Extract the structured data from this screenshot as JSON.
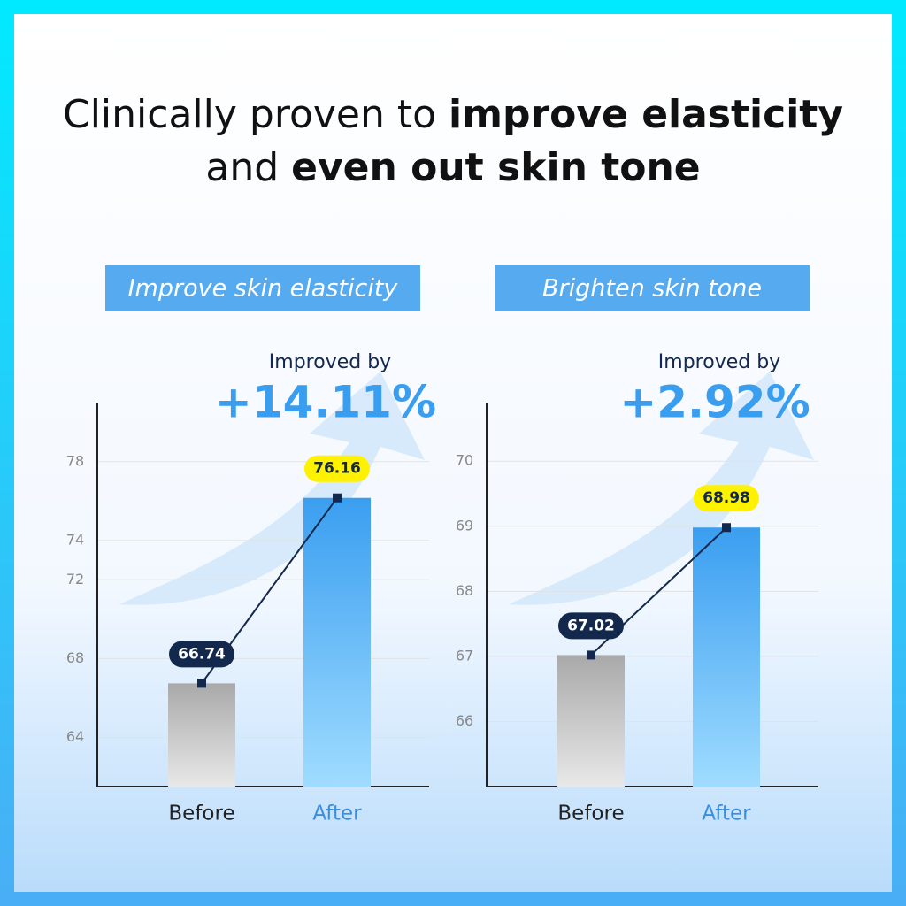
{
  "header": {
    "title_parts": [
      {
        "text": "Clinically proven to ",
        "bold": false,
        "line": 0
      },
      {
        "text": "improve elasticity",
        "bold": true,
        "line": 0
      },
      {
        "text": "and ",
        "bold": false,
        "line": 1
      },
      {
        "text": "even out skin tone",
        "bold": true,
        "line": 1
      }
    ]
  },
  "chart_data": [
    {
      "type": "bar",
      "badge": "Improve skin elasticity",
      "annotation_label": "Improved by",
      "annotation_value": "+14.11%",
      "categories": [
        "Before",
        "After"
      ],
      "values": [
        66.74,
        76.16
      ],
      "colors": [
        "#a9a9a9",
        "#3a9ef0"
      ],
      "label_colors": [
        "#13284d",
        "#fff200"
      ],
      "ylim": [
        61.5,
        81
      ],
      "yticks": [
        64,
        68,
        72,
        74,
        78
      ],
      "grid": true
    },
    {
      "type": "bar",
      "badge": "Brighten skin tone",
      "annotation_label": "Improved by",
      "annotation_value": "+2.92%",
      "categories": [
        "Before",
        "After"
      ],
      "values": [
        67.02,
        68.98
      ],
      "colors": [
        "#a9a9a9",
        "#3a9ef0"
      ],
      "label_colors": [
        "#13284d",
        "#fff200"
      ],
      "ylim": [
        65,
        70.9
      ],
      "yticks": [
        66,
        67,
        68,
        69,
        70
      ],
      "grid": true
    }
  ]
}
